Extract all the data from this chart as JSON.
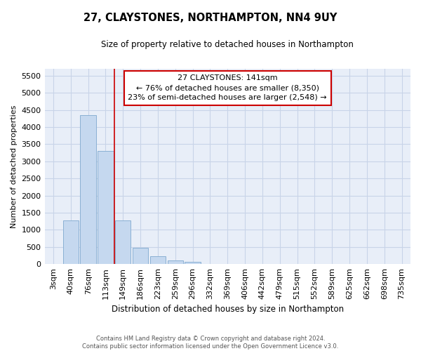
{
  "title": "27, CLAYSTONES, NORTHAMPTON, NN4 9UY",
  "subtitle": "Size of property relative to detached houses in Northampton",
  "xlabel": "Distribution of detached houses by size in Northampton",
  "ylabel": "Number of detached properties",
  "footer_line1": "Contains HM Land Registry data © Crown copyright and database right 2024.",
  "footer_line2": "Contains public sector information licensed under the Open Government Licence v3.0.",
  "annotation_line1": "27 CLAYSTONES: 141sqm",
  "annotation_line2": "← 76% of detached houses are smaller (8,350)",
  "annotation_line3": "23% of semi-detached houses are larger (2,548) →",
  "bar_color": "#c5d8ef",
  "bar_edge_color": "#8ab0d4",
  "vline_color": "#cc0000",
  "categories": [
    "3sqm",
    "40sqm",
    "76sqm",
    "113sqm",
    "149sqm",
    "186sqm",
    "223sqm",
    "259sqm",
    "296sqm",
    "332sqm",
    "369sqm",
    "406sqm",
    "442sqm",
    "479sqm",
    "515sqm",
    "552sqm",
    "589sqm",
    "625sqm",
    "662sqm",
    "698sqm",
    "735sqm"
  ],
  "values": [
    0,
    1270,
    4340,
    3300,
    1280,
    480,
    230,
    100,
    65,
    0,
    0,
    0,
    0,
    0,
    0,
    0,
    0,
    0,
    0,
    0,
    0
  ],
  "ylim": [
    0,
    5700
  ],
  "yticks": [
    0,
    500,
    1000,
    1500,
    2000,
    2500,
    3000,
    3500,
    4000,
    4500,
    5000,
    5500
  ],
  "vline_x": 3.5,
  "grid_color": "#c8d4e8",
  "background_color": "#ffffff",
  "plot_bg_color": "#e8eef8"
}
